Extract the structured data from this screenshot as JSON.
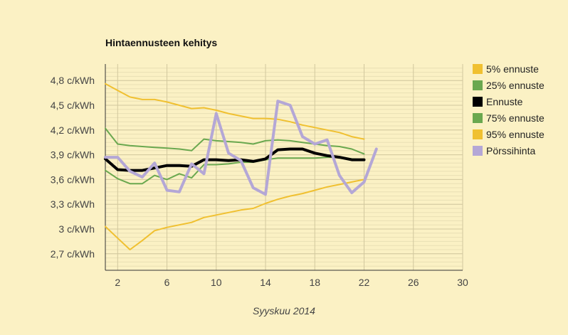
{
  "chart_data": {
    "type": "line",
    "title": "Hintaennusteen kehitys",
    "xlabel": "Syyskuu 2014",
    "ylabel": "",
    "xlim": [
      1,
      30
    ],
    "ylim": [
      2.5,
      5.0
    ],
    "x_ticks": [
      2,
      6,
      10,
      14,
      18,
      22,
      26,
      30
    ],
    "x_tick_labels": [
      "2",
      "6",
      "10",
      "14",
      "18",
      "22",
      "26",
      "30"
    ],
    "y_ticks": [
      2.7,
      3.0,
      3.3,
      3.6,
      3.9,
      4.2,
      4.5,
      4.8
    ],
    "y_tick_labels": [
      "2,7 c/kWh",
      "3 c/kWh",
      "3,3 c/kWh",
      "3,6 c/kWh",
      "3,9 c/kWh",
      "4,2 c/kWh",
      "4,5 c/kWh",
      "4,8 c/kWh"
    ],
    "grid": true,
    "legend_position": "right",
    "series": [
      {
        "name": "5% ennuste",
        "color": "#f0c030",
        "width": 2,
        "x": [
          1,
          2,
          3,
          4,
          5,
          6,
          7,
          8,
          9,
          10,
          11,
          12,
          13,
          14,
          15,
          16,
          17,
          18,
          19,
          20,
          21,
          22
        ],
        "values": [
          3.03,
          2.89,
          2.75,
          2.86,
          2.98,
          3.02,
          3.05,
          3.08,
          3.14,
          3.17,
          3.2,
          3.23,
          3.25,
          3.31,
          3.36,
          3.4,
          3.43,
          3.47,
          3.51,
          3.54,
          3.57,
          3.6
        ]
      },
      {
        "name": "25% ennuste",
        "color": "#6aa84f",
        "width": 2,
        "x": [
          1,
          2,
          3,
          4,
          5,
          6,
          7,
          8,
          9,
          10,
          11,
          12,
          13,
          14,
          15,
          16,
          17,
          18,
          19,
          20,
          21,
          22
        ],
        "values": [
          3.71,
          3.61,
          3.55,
          3.55,
          3.65,
          3.6,
          3.67,
          3.62,
          3.78,
          3.78,
          3.79,
          3.81,
          3.81,
          3.84,
          3.86,
          3.86,
          3.86,
          3.86,
          3.87,
          3.87,
          3.85,
          3.84
        ]
      },
      {
        "name": "Ennuste",
        "color": "#000000",
        "width": 4,
        "x": [
          1,
          2,
          3,
          4,
          5,
          6,
          7,
          8,
          9,
          10,
          11,
          12,
          13,
          14,
          15,
          16,
          17,
          18,
          19,
          20,
          21,
          22
        ],
        "values": [
          3.85,
          3.72,
          3.71,
          3.71,
          3.74,
          3.77,
          3.77,
          3.76,
          3.84,
          3.84,
          3.83,
          3.84,
          3.82,
          3.85,
          3.96,
          3.97,
          3.97,
          3.92,
          3.89,
          3.87,
          3.84,
          3.84
        ]
      },
      {
        "name": "75% ennuste",
        "color": "#6aa84f",
        "width": 2,
        "x": [
          1,
          2,
          3,
          4,
          5,
          6,
          7,
          8,
          9,
          10,
          11,
          12,
          13,
          14,
          15,
          16,
          17,
          18,
          19,
          20,
          21,
          22
        ],
        "values": [
          4.22,
          4.03,
          4.01,
          4.0,
          3.99,
          3.98,
          3.97,
          3.95,
          4.09,
          4.07,
          4.06,
          4.05,
          4.03,
          4.07,
          4.08,
          4.07,
          4.05,
          4.03,
          4.01,
          4.0,
          3.97,
          3.91
        ]
      },
      {
        "name": "95% ennuste",
        "color": "#f0c030",
        "width": 2,
        "x": [
          1,
          2,
          3,
          4,
          5,
          6,
          7,
          8,
          9,
          10,
          11,
          12,
          13,
          14,
          15,
          16,
          17,
          18,
          19,
          20,
          21,
          22
        ],
        "values": [
          4.76,
          4.68,
          4.6,
          4.57,
          4.57,
          4.54,
          4.5,
          4.46,
          4.47,
          4.44,
          4.4,
          4.37,
          4.34,
          4.34,
          4.33,
          4.3,
          4.26,
          4.23,
          4.2,
          4.17,
          4.12,
          4.09
        ]
      },
      {
        "name": "Pörssihinta",
        "color": "#b4a7d6",
        "width": 4,
        "x": [
          1,
          2,
          3,
          4,
          5,
          6,
          7,
          8,
          9,
          10,
          11,
          12,
          13,
          14,
          15,
          16,
          17,
          18,
          19,
          20,
          21,
          22,
          23
        ],
        "values": [
          3.87,
          3.87,
          3.7,
          3.63,
          3.8,
          3.47,
          3.45,
          3.79,
          3.67,
          4.4,
          3.92,
          3.83,
          3.5,
          3.42,
          4.55,
          4.5,
          4.12,
          4.03,
          4.08,
          3.65,
          3.44,
          3.57,
          3.97
        ]
      }
    ]
  }
}
